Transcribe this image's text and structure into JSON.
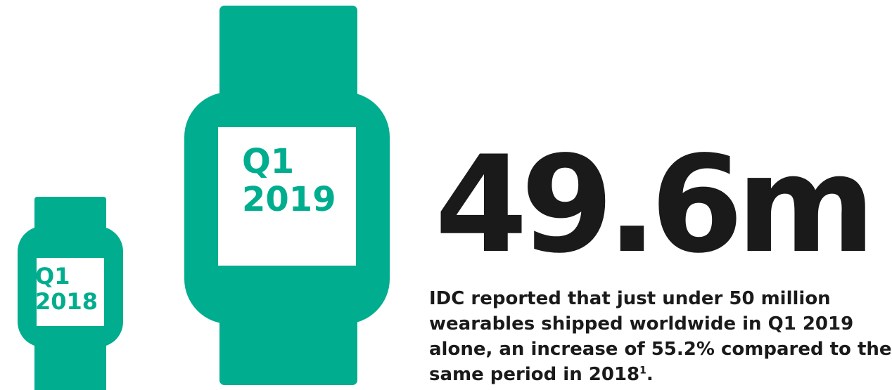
{
  "colors": {
    "accent": "#00ad8e",
    "text": "#1a1a1a",
    "background": "#ffffff"
  },
  "watches": {
    "small": {
      "line1": "Q1",
      "line2": "2018"
    },
    "big": {
      "line1": "Q1",
      "line2": "2019"
    }
  },
  "headline": "49.6m",
  "description": {
    "line1": "IDC reported that just under 50 million",
    "line2": "wearables shipped worldwide in Q1 2019",
    "line3": "alone, an increase of 55.2% compared to the",
    "line4_text": "same period in 2018",
    "footnote_marker": "1",
    "line4_end": "."
  }
}
